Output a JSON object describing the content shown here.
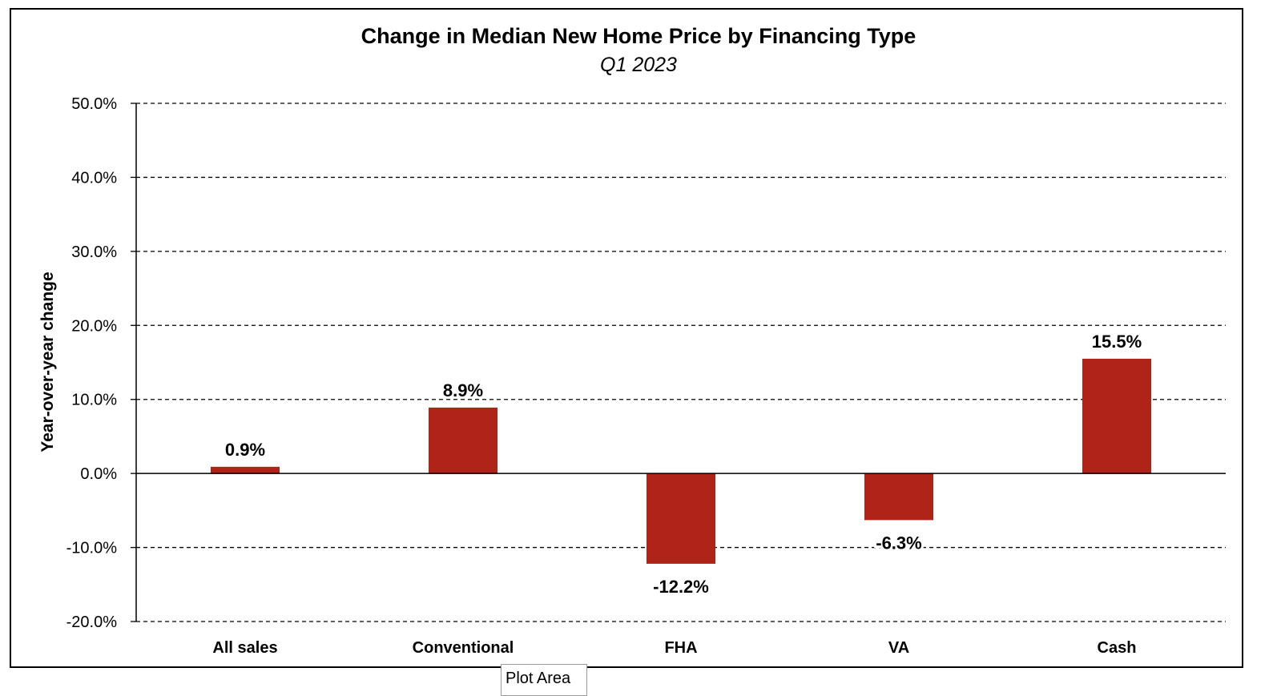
{
  "chart_data": {
    "type": "bar",
    "title": "Change in Median New Home Price by Financing Type",
    "subtitle": "Q1 2023",
    "xlabel": "",
    "ylabel": "Year-over-year change",
    "categories": [
      "All sales",
      "Conventional",
      "FHA",
      "VA",
      "Cash"
    ],
    "values": [
      0.9,
      8.9,
      -12.2,
      -6.3,
      15.5
    ],
    "data_labels": [
      "0.9%",
      "8.9%",
      "-12.2%",
      "-6.3%",
      "15.5%"
    ],
    "ylim": [
      -20,
      50
    ],
    "y_ticks": [
      50,
      40,
      30,
      20,
      10,
      0,
      -10,
      -20
    ],
    "y_tick_labels": [
      "50.0%",
      "40.0%",
      "30.0%",
      "20.0%",
      "10.0%",
      "0.0%",
      "-10.0%",
      "-20.0%"
    ],
    "grid": "horizontal dashed",
    "legend": "none",
    "bar_color": "#B02318"
  },
  "overlay": {
    "tooltip_label": "Plot Area"
  }
}
